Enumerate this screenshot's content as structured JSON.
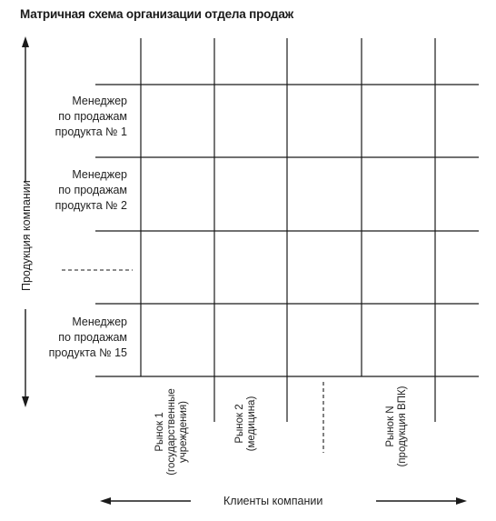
{
  "title": "Матричная схема организации отдела продаж",
  "rows": [
    {
      "lines": [
        "Менеджер",
        "по продажам",
        "продукта № 1"
      ]
    },
    {
      "lines": [
        "Менеджер",
        "по продажам",
        "продукта № 2"
      ]
    },
    {
      "lines": [
        "Менеджер",
        "по продажам",
        "продукта № 15"
      ]
    }
  ],
  "columns": [
    {
      "lines": [
        "Рынок 1",
        "(государственные",
        "учреждения)"
      ]
    },
    {
      "lines": [
        "Рынок 2",
        "(медицина)"
      ]
    },
    {
      "lines": [
        "Рынок N",
        "(продукция ВПК)"
      ]
    }
  ],
  "y_axis_label": "Продукция компании",
  "x_axis_label": "Клиенты компании",
  "colors": {
    "line": "#1a1a1a",
    "text": "#222222"
  }
}
